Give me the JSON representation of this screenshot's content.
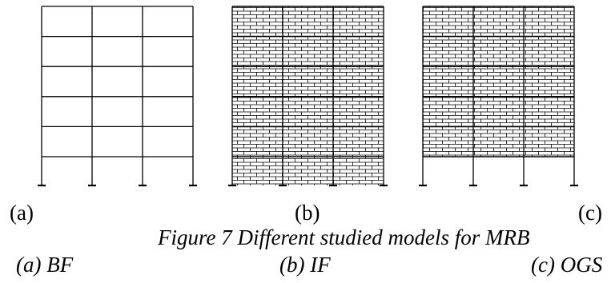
{
  "panel_labels": [
    "(a)",
    "(b)",
    "(c)"
  ],
  "caption": "Figure 7 Different studied models for MRB",
  "sub_labels": [
    "(a) BF",
    "(b) IF",
    "(c) OGS"
  ],
  "structure": {
    "bays": 3,
    "storeys": 6,
    "models": [
      {
        "id": "BF",
        "infill": "none"
      },
      {
        "id": "IF",
        "infill": "all-storeys"
      },
      {
        "id": "OGS",
        "infill": "upper-storeys-open-ground"
      }
    ]
  },
  "colors": {
    "line": "#000000",
    "background": "#ffffff"
  }
}
